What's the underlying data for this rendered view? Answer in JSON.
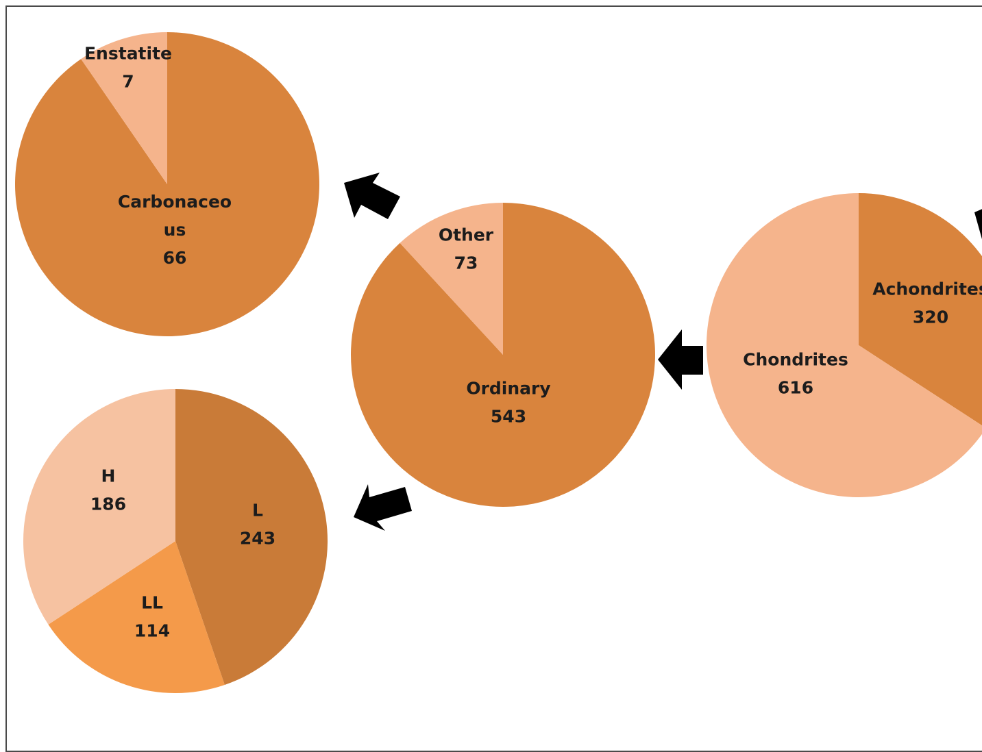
{
  "chart_data": [
    {
      "type": "pie",
      "slices": [
        {
          "label": "Achondrites",
          "value": 320,
          "color": "#D9843D"
        },
        {
          "label": "Chondrites",
          "value": 616,
          "color": "#F5B48C"
        }
      ]
    },
    {
      "type": "pie",
      "slices": [
        {
          "label": "Ordinary",
          "value": 543,
          "color": "#D9843D"
        },
        {
          "label": "Other",
          "value": 73,
          "color": "#F5B48C"
        }
      ]
    },
    {
      "type": "pie",
      "slices": [
        {
          "label": "Carbonaceo us",
          "value": 66,
          "color": "#D9843D"
        },
        {
          "label": "Enstatite",
          "value": 7,
          "color": "#F5B48C"
        }
      ]
    },
    {
      "type": "pie",
      "slices": [
        {
          "label": "L",
          "value": 243,
          "color": "#C97B38"
        },
        {
          "label": "LL",
          "value": 114,
          "color": "#F49A4A"
        },
        {
          "label": "H",
          "value": 186,
          "color": "#F6C2A1"
        }
      ]
    }
  ],
  "colors": {
    "arrow": "#000000",
    "frame": "#4a4a4a"
  }
}
